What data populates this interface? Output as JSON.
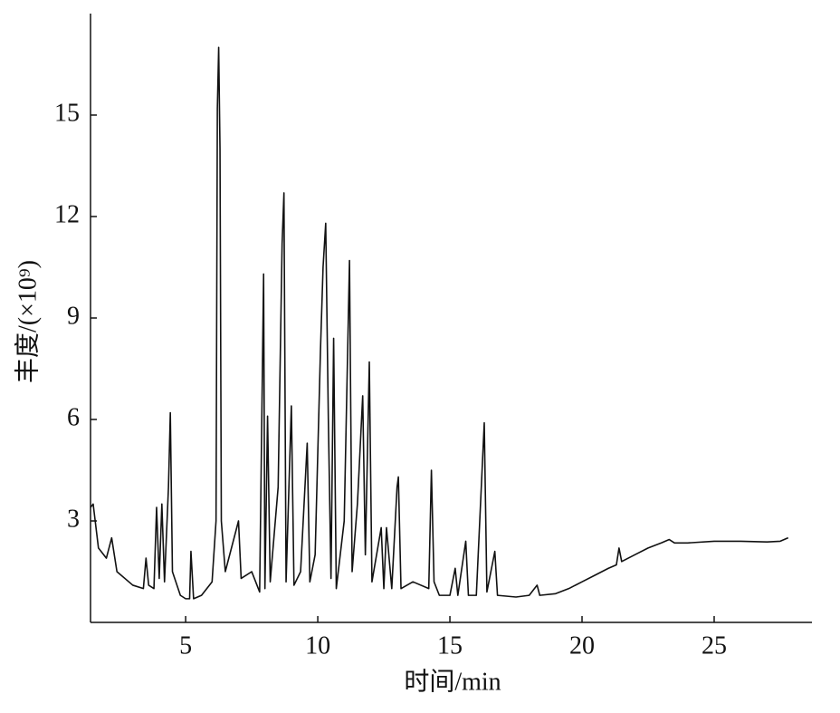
{
  "chart_data": {
    "type": "line",
    "x_label": "时间/min",
    "y_label": "丰度/(×10⁹)",
    "xlim": [
      1.4,
      28.7
    ],
    "ylim": [
      0,
      18
    ],
    "xticks": [
      5,
      10,
      15,
      20,
      25
    ],
    "yticks": [
      3,
      6,
      9,
      12,
      15
    ],
    "grid": false,
    "x": [
      1.4,
      1.5,
      1.7,
      2.0,
      2.2,
      2.4,
      3.0,
      3.4,
      3.5,
      3.6,
      3.8,
      3.9,
      4.0,
      4.1,
      4.2,
      4.35,
      4.42,
      4.5,
      4.8,
      5.0,
      5.15,
      5.2,
      5.3,
      5.6,
      6.0,
      6.15,
      6.2,
      6.25,
      6.3,
      6.35,
      6.5,
      7.0,
      7.1,
      7.5,
      7.8,
      7.95,
      8.0,
      8.1,
      8.2,
      8.5,
      8.65,
      8.72,
      8.8,
      9.0,
      9.1,
      9.35,
      9.6,
      9.7,
      9.9,
      10.1,
      10.2,
      10.3,
      10.4,
      10.5,
      10.6,
      10.7,
      11.0,
      11.2,
      11.3,
      11.5,
      11.7,
      11.8,
      11.95,
      12.05,
      12.4,
      12.5,
      12.6,
      12.8,
      13.0,
      13.05,
      13.15,
      13.6,
      14.2,
      14.3,
      14.4,
      14.6,
      15.0,
      15.2,
      15.3,
      15.6,
      15.7,
      16.0,
      16.3,
      16.4,
      16.7,
      16.8,
      17.5,
      18.0,
      18.3,
      18.4,
      19.0,
      19.5,
      20.0,
      20.5,
      21.0,
      21.3,
      21.4,
      21.5,
      22.0,
      22.5,
      23.0,
      23.3,
      23.5,
      24.0,
      25.0,
      26.0,
      27.0,
      27.5,
      27.8
    ],
    "series": [
      {
        "color": "#111111",
        "values": [
          3.4,
          3.5,
          2.2,
          1.9,
          2.5,
          1.5,
          1.1,
          1.0,
          1.9,
          1.1,
          1.0,
          3.4,
          1.3,
          3.5,
          1.2,
          4.0,
          6.2,
          1.5,
          0.8,
          0.7,
          0.7,
          2.1,
          0.7,
          0.8,
          1.2,
          3.0,
          15.2,
          17.0,
          14.0,
          3.0,
          1.5,
          3.0,
          1.3,
          1.5,
          0.9,
          10.3,
          1.0,
          6.1,
          1.2,
          4.0,
          11.2,
          12.7,
          1.2,
          6.4,
          1.1,
          1.5,
          5.3,
          1.2,
          2.0,
          8.0,
          10.5,
          11.8,
          6.0,
          1.3,
          8.4,
          1.0,
          3.0,
          10.7,
          1.5,
          3.5,
          6.7,
          2.0,
          7.7,
          1.2,
          2.8,
          1.0,
          2.8,
          1.0,
          4.0,
          4.3,
          1.0,
          1.2,
          1.0,
          4.5,
          1.2,
          0.8,
          0.8,
          1.6,
          0.8,
          2.4,
          0.8,
          0.8,
          5.9,
          0.9,
          2.1,
          0.8,
          0.75,
          0.8,
          1.1,
          0.8,
          0.85,
          1.0,
          1.2,
          1.4,
          1.6,
          1.7,
          2.2,
          1.8,
          2.0,
          2.2,
          2.35,
          2.45,
          2.35,
          2.35,
          2.4,
          2.4,
          2.38,
          2.4,
          2.5
        ]
      }
    ]
  }
}
